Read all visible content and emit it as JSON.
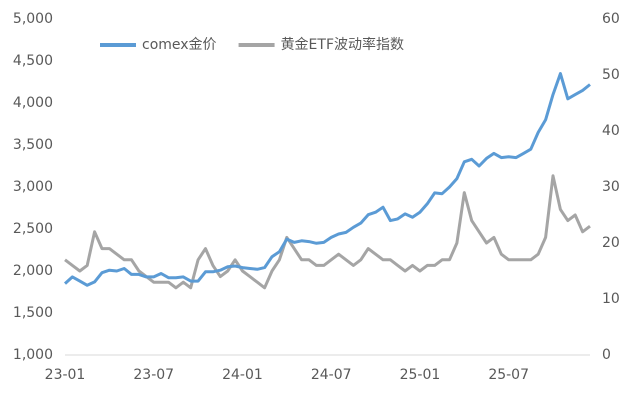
{
  "chart_data": {
    "type": "line",
    "categories": [
      "23-01",
      null,
      null,
      null,
      null,
      null,
      null,
      null,
      null,
      null,
      null,
      null,
      "23-07",
      null,
      null,
      null,
      null,
      null,
      null,
      null,
      null,
      null,
      null,
      null,
      "24-01",
      null,
      null,
      null,
      null,
      null,
      null,
      null,
      null,
      null,
      null,
      null,
      "24-07",
      null,
      null,
      null,
      null,
      null,
      null,
      null,
      null,
      null,
      null,
      null,
      "25-01",
      null,
      null,
      null,
      null,
      null,
      null,
      null,
      null,
      null,
      null,
      null,
      "25-07",
      null,
      null,
      null,
      null,
      null,
      null,
      null,
      null,
      null,
      null,
      null
    ],
    "series": [
      {
        "name": "comex金价",
        "color": "#5b9bd5",
        "values": [
          1850,
          1930,
          1880,
          1830,
          1870,
          1980,
          2010,
          2000,
          2030,
          1960,
          1960,
          1930,
          1930,
          1970,
          1920,
          1920,
          1930,
          1880,
          1880,
          1990,
          1990,
          2010,
          2050,
          2060,
          2040,
          2030,
          2020,
          2040,
          2170,
          2230,
          2380,
          2340,
          2360,
          2350,
          2330,
          2340,
          2400,
          2440,
          2460,
          2520,
          2570,
          2670,
          2700,
          2760,
          2600,
          2620,
          2680,
          2640,
          2700,
          2800,
          2930,
          2920,
          3000,
          3100,
          3300,
          3330,
          3250,
          3340,
          3400,
          3350,
          3360,
          3350,
          3400,
          3450,
          3650,
          3800,
          4100,
          4350,
          4050,
          4100,
          4150,
          4220
        ]
      },
      {
        "name": "黄金ETF波动率指数",
        "color": "#a5a5a5",
        "axis": "y2",
        "values": [
          17,
          16,
          15,
          16,
          22,
          19,
          19,
          18,
          17,
          17,
          15,
          14,
          13,
          13,
          13,
          12,
          13,
          12,
          17,
          19,
          16,
          14,
          15,
          17,
          15,
          14,
          13,
          12,
          15,
          17,
          21,
          19,
          17,
          17,
          16,
          16,
          17,
          18,
          17,
          16,
          17,
          19,
          18,
          17,
          17,
          16,
          15,
          16,
          15,
          16,
          16,
          17,
          17,
          20,
          29,
          24,
          22,
          20,
          21,
          18,
          17,
          17,
          17,
          17,
          18,
          21,
          32,
          26,
          24,
          25,
          22,
          23
        ]
      }
    ],
    "ylim": [
      1000,
      5000
    ],
    "yticks": [
      {
        "value": 1000,
        "label": "1,000"
      },
      {
        "value": 1500,
        "label": "1,500"
      },
      {
        "value": 2000,
        "label": "2,000"
      },
      {
        "value": 2500,
        "label": "2,500"
      },
      {
        "value": 3000,
        "label": "3,000"
      },
      {
        "value": 3500,
        "label": "3,500"
      },
      {
        "value": 4000,
        "label": "4,000"
      },
      {
        "value": 4500,
        "label": "4,500"
      },
      {
        "value": 5000,
        "label": "5,000"
      }
    ],
    "y2lim": [
      0,
      60
    ],
    "y2ticks": [
      0,
      10,
      20,
      30,
      40,
      50,
      60
    ],
    "legend": "top-left"
  }
}
